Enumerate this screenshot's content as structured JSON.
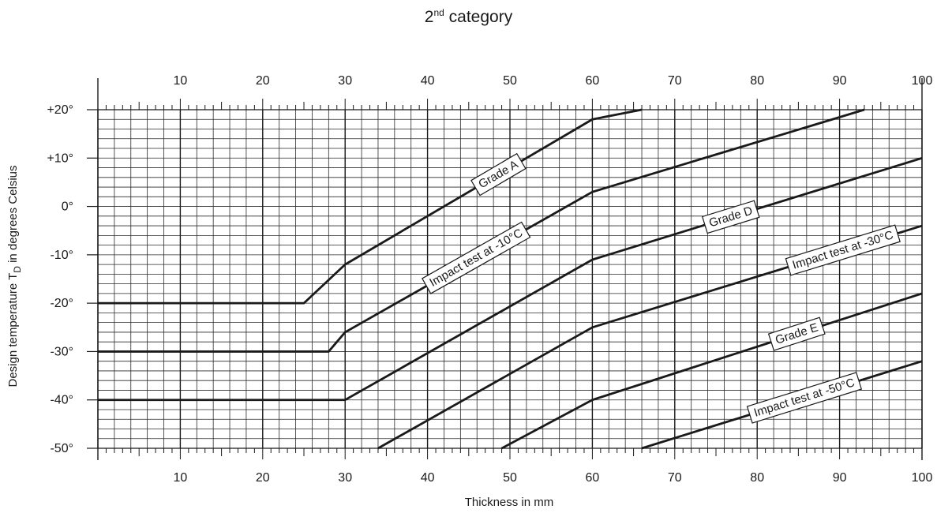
{
  "chart_data": {
    "type": "line",
    "title": {
      "base": "2",
      "sup": "nd",
      "rest": " category"
    },
    "xlabel": "Thickness in mm",
    "ylabel": {
      "base": "Design temperature T",
      "sub": "D",
      "rest": " in degrees Celsius"
    },
    "xlim": [
      0,
      100
    ],
    "ylim": [
      -50,
      20
    ],
    "x_ticks": [
      10,
      20,
      30,
      40,
      50,
      60,
      70,
      80,
      90,
      100
    ],
    "x_tick_labels": [
      "10",
      "20",
      "30",
      "40",
      "50",
      "60",
      "70",
      "80",
      "90",
      "100"
    ],
    "y_ticks": [
      20,
      10,
      0,
      -10,
      -20,
      -30,
      -40,
      -50
    ],
    "y_tick_labels": [
      "+20°",
      "+10°",
      "0°",
      "-10°",
      "-20°",
      "-30°",
      "-40°",
      "-50°"
    ],
    "grid": true,
    "series": [
      {
        "name": "Grade A",
        "x": [
          0,
          25,
          30,
          60,
          66
        ],
        "y": [
          -20,
          -20,
          -12,
          18,
          20
        ],
        "label_at": 0.62
      },
      {
        "name": "Impact test at -10°C",
        "x": [
          0,
          28,
          30,
          60,
          93
        ],
        "y": [
          -30,
          -30,
          -26,
          3,
          20
        ],
        "label_at": 0.53
      },
      {
        "name": "Grade D",
        "x": [
          0,
          30,
          60,
          100
        ],
        "y": [
          -40,
          -40,
          -11,
          10
        ],
        "label_at": 0.42
      },
      {
        "name": "Impact test at -30°C",
        "x": [
          34,
          60,
          100
        ],
        "y": [
          -50,
          -25,
          -4
        ],
        "label_at": 0.76
      },
      {
        "name": "Grade E",
        "x": [
          49,
          60,
          100
        ],
        "y": [
          -50,
          -40,
          -18
        ],
        "label_at": 0.62
      },
      {
        "name": "Impact test at -50°C",
        "x": [
          66,
          100
        ],
        "y": [
          -50,
          -32
        ],
        "label_at": 0.58
      }
    ]
  }
}
